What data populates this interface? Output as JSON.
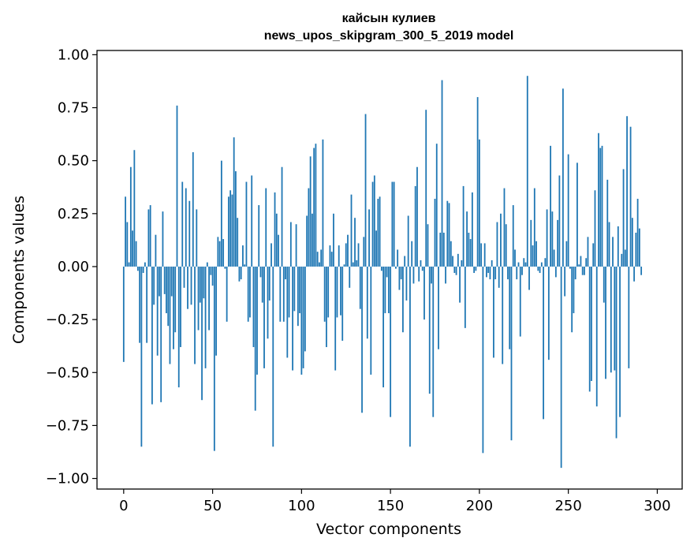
{
  "chart_data": {
    "type": "bar",
    "title": "кайсын кулиев",
    "subtitle": "news_upos_skipgram_300_5_2019 model",
    "xlabel": "Vector components",
    "ylabel": "Components values",
    "xlim": [
      -15,
      314
    ],
    "ylim": [
      -1.05,
      1.02
    ],
    "xticks": [
      0,
      50,
      100,
      150,
      200,
      250,
      300
    ],
    "yticks": [
      -1.0,
      -0.75,
      -0.5,
      -0.25,
      0.0,
      0.25,
      0.5,
      0.75,
      1.0
    ],
    "xtick_labels": [
      "0",
      "50",
      "100",
      "150",
      "200",
      "250",
      "300"
    ],
    "ytick_labels": [
      "−1.00",
      "−0.75",
      "−0.50",
      "−0.25",
      "0.00",
      "0.25",
      "0.50",
      "0.75",
      "1.00"
    ],
    "grid": false,
    "color": "#1f77b4",
    "values": [
      -0.45,
      0.33,
      0.21,
      0.02,
      0.47,
      0.17,
      0.55,
      0.12,
      -0.02,
      -0.36,
      -0.85,
      -0.03,
      0.02,
      -0.36,
      0.27,
      0.29,
      -0.65,
      -0.18,
      0.15,
      -0.42,
      -0.14,
      -0.64,
      0.26,
      -0.13,
      -0.22,
      -0.28,
      -0.46,
      -0.14,
      -0.39,
      -0.31,
      0.76,
      -0.57,
      -0.38,
      0.4,
      -0.1,
      0.37,
      -0.2,
      0.31,
      -0.18,
      0.54,
      -0.46,
      0.27,
      -0.3,
      -0.17,
      -0.63,
      -0.15,
      -0.48,
      0.02,
      -0.3,
      -0.04,
      -0.09,
      -0.87,
      -0.42,
      0.14,
      0.12,
      0.5,
      0.13,
      -0.01,
      -0.26,
      0.33,
      0.36,
      0.34,
      0.61,
      0.45,
      0.23,
      -0.07,
      -0.06,
      0.1,
      0.01,
      0.4,
      -0.26,
      -0.24,
      0.43,
      -0.38,
      -0.68,
      -0.51,
      0.29,
      -0.05,
      -0.17,
      -0.48,
      0.37,
      -0.34,
      -0.16,
      0.11,
      -0.85,
      0.35,
      0.25,
      0.15,
      -0.26,
      0.47,
      -0.26,
      -0.06,
      -0.43,
      -0.24,
      0.21,
      -0.49,
      -0.21,
      0.2,
      -0.28,
      -0.22,
      -0.51,
      -0.48,
      -0.4,
      0.24,
      0.37,
      0.52,
      0.25,
      0.56,
      0.58,
      0.07,
      0.02,
      0.08,
      0.6,
      -0.26,
      -0.38,
      -0.24,
      0.1,
      0.07,
      0.25,
      -0.49,
      -0.24,
      0.1,
      -0.23,
      -0.35,
      0.01,
      0.11,
      0.15,
      -0.1,
      0.34,
      0.02,
      0.23,
      0.03,
      0.11,
      -0.2,
      -0.69,
      0.14,
      0.72,
      -0.34,
      0.27,
      -0.51,
      0.4,
      0.43,
      0.17,
      0.32,
      0.33,
      -0.02,
      -0.57,
      -0.22,
      -0.05,
      -0.22,
      -0.71,
      0.4,
      0.4,
      -0.01,
      0.08,
      -0.11,
      -0.06,
      -0.31,
      0.05,
      -0.16,
      0.24,
      -0.85,
      0.12,
      -0.08,
      0.38,
      0.47,
      -0.07,
      0.03,
      -0.02,
      -0.25,
      0.74,
      0.2,
      -0.6,
      -0.08,
      -0.71,
      0.32,
      0.58,
      -0.39,
      0.16,
      0.88,
      0.16,
      -0.08,
      0.31,
      0.3,
      0.12,
      0.05,
      -0.03,
      -0.04,
      0.06,
      -0.17,
      0.03,
      0.38,
      -0.29,
      0.26,
      0.16,
      0.13,
      0.35,
      -0.03,
      -0.02,
      0.8,
      0.6,
      0.11,
      -0.88,
      0.11,
      -0.05,
      -0.03,
      -0.06,
      0.03,
      -0.43,
      -0.06,
      0.21,
      -0.1,
      0.25,
      -0.46,
      0.37,
      0.2,
      -0.06,
      -0.39,
      -0.82,
      0.29,
      0.08,
      -0.06,
      0.02,
      -0.33,
      -0.04,
      0.04,
      0.02,
      0.9,
      -0.11,
      0.22,
      0.1,
      0.37,
      0.12,
      -0.02,
      -0.03,
      0.02,
      -0.72,
      0.04,
      0.27,
      -0.44,
      0.57,
      0.26,
      0.08,
      -0.05,
      0.22,
      0.43,
      -0.95,
      0.84,
      -0.14,
      0.12,
      0.53,
      -0.01,
      -0.31,
      -0.22,
      -0.06,
      0.49,
      0.01,
      0.05,
      -0.04,
      -0.04,
      0.04,
      0.14,
      -0.59,
      -0.54,
      0.11,
      0.36,
      -0.66,
      0.63,
      0.56,
      0.57,
      -0.17,
      -0.53,
      0.41,
      0.21,
      -0.5,
      0.14,
      -0.49,
      -0.81,
      0.19,
      -0.71,
      0.06,
      0.46,
      0.08,
      0.71,
      -0.48,
      0.66,
      0.23,
      -0.07,
      0.16,
      0.32,
      0.18,
      -0.04
    ]
  }
}
